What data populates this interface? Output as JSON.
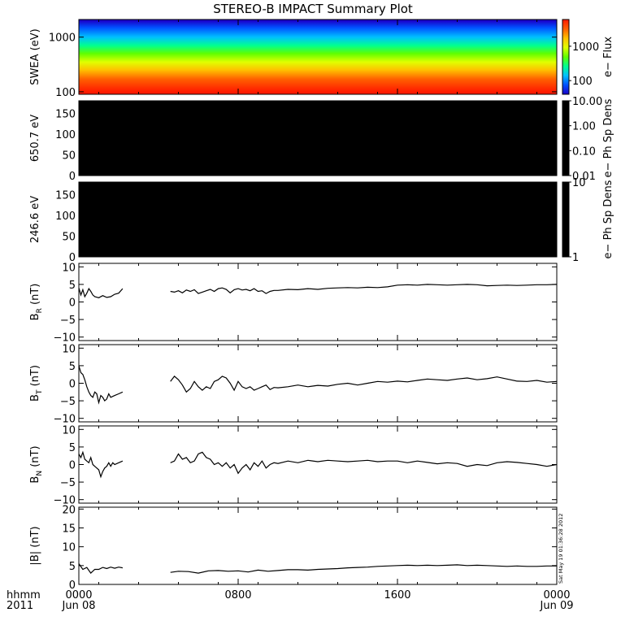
{
  "title": "STEREO-B IMPACT Summary Plot",
  "stamp": "Sat May 19 01:36:28 2012",
  "time_axis": {
    "row1_label": "hhmm",
    "row2_label": "2011",
    "ticks": [
      {
        "hours": 0,
        "label1": "0000",
        "label2": "Jun 08"
      },
      {
        "hours": 8,
        "label1": "0800",
        "label2": ""
      },
      {
        "hours": 16,
        "label1": "1600",
        "label2": ""
      },
      {
        "hours": 24,
        "label1": "0000",
        "label2": "Jun 09"
      }
    ],
    "range_hours": [
      0,
      24
    ]
  },
  "chart_data": [
    {
      "type": "heatmap",
      "panel": "swea",
      "ylabel": "SWEA (eV)",
      "yscale": "log",
      "ylim": [
        90,
        2100
      ],
      "yticks": [
        {
          "value": 100,
          "label": "100"
        },
        {
          "value": 1000,
          "label": "1000"
        }
      ],
      "colorbar": {
        "label": "e− Flux",
        "scale": "log",
        "range": [
          40,
          6000
        ],
        "ticks": [
          {
            "value": 100,
            "label": "100"
          },
          {
            "value": 1000,
            "label": "1000"
          }
        ],
        "colors": [
          "#1a00c8",
          "#0050ff",
          "#00c0ff",
          "#00ff90",
          "#60ff00",
          "#e0ff00",
          "#ffc000",
          "#ff6000",
          "#ff1a00"
        ]
      },
      "bands": [
        {
          "energy_ev": 2000,
          "color": "#1a00c8"
        },
        {
          "energy_ev": 1500,
          "color": "#0050ff"
        },
        {
          "energy_ev": 1000,
          "color": "#00c0ff"
        },
        {
          "energy_ev": 700,
          "color": "#00ff90"
        },
        {
          "energy_ev": 500,
          "color": "#60ff00"
        },
        {
          "energy_ev": 350,
          "color": "#e0ff00"
        },
        {
          "energy_ev": 250,
          "color": "#ffc000"
        },
        {
          "energy_ev": 170,
          "color": "#ff6000"
        },
        {
          "energy_ev": 100,
          "color": "#ff1a00"
        }
      ]
    },
    {
      "type": "heatmap",
      "panel": "pad650",
      "ylabel": "650.7 eV",
      "ylim": [
        0,
        180
      ],
      "yticks": [
        {
          "value": 0,
          "label": "0"
        },
        {
          "value": 50,
          "label": "50"
        },
        {
          "value": 100,
          "label": "100"
        },
        {
          "value": 150,
          "label": "150"
        }
      ],
      "fill": "#000000",
      "colorbar": {
        "label": "e− Ph Sp Dens",
        "scale": "log",
        "range": [
          0.01,
          10
        ],
        "ticks": [
          {
            "value": 0.01,
            "label": "0.01"
          },
          {
            "value": 0.1,
            "label": "0.10"
          },
          {
            "value": 1,
            "label": "1.00"
          },
          {
            "value": 10,
            "label": "10.00"
          }
        ]
      }
    },
    {
      "type": "heatmap",
      "panel": "pad246",
      "ylabel": "246.6 eV",
      "ylim": [
        0,
        180
      ],
      "yticks": [
        {
          "value": 0,
          "label": "0"
        },
        {
          "value": 50,
          "label": "50"
        },
        {
          "value": 100,
          "label": "100"
        },
        {
          "value": 150,
          "label": "150"
        }
      ],
      "fill": "#000000",
      "colorbar": {
        "label": "e− Ph Sp Dens",
        "scale": "log",
        "range": [
          1,
          10
        ],
        "ticks": [
          {
            "value": 1,
            "label": "1"
          },
          {
            "value": 10,
            "label": "10"
          }
        ]
      }
    },
    {
      "type": "line",
      "panel": "br",
      "ylabel_main": "B",
      "ylabel_sub": "R",
      "ylabel_unit": " (nT)",
      "ylim": [
        -11,
        11
      ],
      "yticks": [
        {
          "value": -10,
          "label": "−10"
        },
        {
          "value": -5,
          "label": "−5"
        },
        {
          "value": 0,
          "label": "0"
        },
        {
          "value": 5,
          "label": "5"
        },
        {
          "value": 10,
          "label": "10"
        }
      ],
      "segments": [
        {
          "x": [
            0,
            0.1,
            0.2,
            0.3,
            0.4,
            0.5,
            0.6,
            0.7,
            0.8,
            1.0,
            1.2,
            1.4,
            1.6,
            1.8,
            2.0,
            2.2
          ],
          "y": [
            4.0,
            2.0,
            3.5,
            1.5,
            2.5,
            3.8,
            3.0,
            2.0,
            1.5,
            1.2,
            1.8,
            1.3,
            1.5,
            2.2,
            2.5,
            3.8
          ]
        },
        {
          "x": [
            4.6,
            4.8,
            5.0,
            5.2,
            5.4,
            5.6,
            5.8,
            6.0,
            6.2,
            6.4,
            6.6,
            6.8,
            7.0,
            7.2,
            7.4,
            7.6,
            7.8,
            8.0,
            8.2,
            8.4,
            8.6,
            8.8,
            9.0,
            9.2,
            9.4,
            9.6,
            9.8,
            10.0,
            10.5,
            11.0,
            11.5,
            12.0,
            12.5,
            13.0,
            13.5,
            14.0,
            14.5,
            15.0,
            15.5,
            16.0,
            16.5,
            17.0,
            17.5,
            18.0,
            18.5,
            19.0,
            19.5,
            20.0,
            20.5,
            21.0,
            21.5,
            22.0,
            22.5,
            23.0,
            23.5,
            24.0
          ],
          "y": [
            3.0,
            2.8,
            3.2,
            2.6,
            3.4,
            3.0,
            3.5,
            2.4,
            2.8,
            3.2,
            3.6,
            3.0,
            3.8,
            4.0,
            3.6,
            2.6,
            3.5,
            3.8,
            3.4,
            3.6,
            3.2,
            3.8,
            3.0,
            3.2,
            2.4,
            3.0,
            3.3,
            3.3,
            3.6,
            3.5,
            3.8,
            3.6,
            3.9,
            4.0,
            4.1,
            4.0,
            4.2,
            4.1,
            4.3,
            4.8,
            4.9,
            4.8,
            5.0,
            4.9,
            4.8,
            4.9,
            5.0,
            4.9,
            4.6,
            4.7,
            4.8,
            4.7,
            4.8,
            4.9,
            4.9,
            5.0
          ]
        }
      ]
    },
    {
      "type": "line",
      "panel": "bt",
      "ylabel_main": "B",
      "ylabel_sub": "T",
      "ylabel_unit": " (nT)",
      "ylim": [
        -11,
        11
      ],
      "yticks": [
        {
          "value": -10,
          "label": "−10"
        },
        {
          "value": -5,
          "label": "−5"
        },
        {
          "value": 0,
          "label": "0"
        },
        {
          "value": 5,
          "label": "5"
        },
        {
          "value": 10,
          "label": "10"
        }
      ],
      "segments": [
        {
          "x": [
            0,
            0.1,
            0.2,
            0.3,
            0.4,
            0.5,
            0.6,
            0.7,
            0.8,
            0.9,
            1.0,
            1.1,
            1.2,
            1.3,
            1.4,
            1.5,
            1.6,
            1.8,
            2.0,
            2.2
          ],
          "y": [
            5.0,
            3.0,
            2.5,
            1.0,
            -1.0,
            -2.5,
            -3.5,
            -4.0,
            -2.5,
            -3.0,
            -5.5,
            -3.5,
            -4.0,
            -5.0,
            -4.5,
            -3.0,
            -4.0,
            -3.5,
            -3.0,
            -2.5
          ]
        },
        {
          "x": [
            4.6,
            4.8,
            5.0,
            5.2,
            5.4,
            5.6,
            5.8,
            6.0,
            6.2,
            6.4,
            6.6,
            6.8,
            7.0,
            7.2,
            7.4,
            7.6,
            7.8,
            8.0,
            8.2,
            8.4,
            8.6,
            8.8,
            9.0,
            9.2,
            9.4,
            9.6,
            9.8,
            10.0,
            10.5,
            11.0,
            11.5,
            12.0,
            12.5,
            13.0,
            13.5,
            14.0,
            14.5,
            15.0,
            15.5,
            16.0,
            16.5,
            17.0,
            17.5,
            18.0,
            18.5,
            19.0,
            19.5,
            20.0,
            20.5,
            21.0,
            21.5,
            22.0,
            22.5,
            23.0,
            23.5,
            24.0
          ],
          "y": [
            0.5,
            2.0,
            1.0,
            -0.5,
            -2.5,
            -1.5,
            0.5,
            -1.0,
            -2.0,
            -1.0,
            -1.5,
            0.5,
            1.0,
            2.0,
            1.5,
            0.0,
            -2.0,
            0.5,
            -1.0,
            -1.5,
            -1.0,
            -2.0,
            -1.5,
            -1.0,
            -0.5,
            -1.8,
            -1.2,
            -1.3,
            -1.0,
            -0.5,
            -1.0,
            -0.6,
            -0.8,
            -0.3,
            0.0,
            -0.5,
            0.0,
            0.5,
            0.3,
            0.6,
            0.4,
            0.8,
            1.2,
            1.0,
            0.8,
            1.2,
            1.5,
            1.0,
            1.3,
            1.8,
            1.2,
            0.6,
            0.5,
            0.8,
            0.3,
            0.5
          ]
        }
      ]
    },
    {
      "type": "line",
      "panel": "bn",
      "ylabel_main": "B",
      "ylabel_sub": "N",
      "ylabel_unit": " (nT)",
      "ylim": [
        -11,
        11
      ],
      "yticks": [
        {
          "value": -10,
          "label": "−10"
        },
        {
          "value": -5,
          "label": "−5"
        },
        {
          "value": 0,
          "label": "0"
        },
        {
          "value": 5,
          "label": "5"
        },
        {
          "value": 10,
          "label": "10"
        }
      ],
      "segments": [
        {
          "x": [
            0,
            0.1,
            0.2,
            0.3,
            0.4,
            0.5,
            0.6,
            0.7,
            0.8,
            0.9,
            1.0,
            1.1,
            1.2,
            1.3,
            1.4,
            1.5,
            1.6,
            1.7,
            1.8,
            2.0,
            2.2
          ],
          "y": [
            3.0,
            2.0,
            3.5,
            1.5,
            1.0,
            0.5,
            2.0,
            0.0,
            -0.5,
            -1.0,
            -1.5,
            -3.5,
            -2.0,
            -1.0,
            -0.5,
            0.5,
            -0.5,
            0.5,
            0.0,
            0.5,
            1.0
          ]
        },
        {
          "x": [
            4.6,
            4.8,
            5.0,
            5.2,
            5.4,
            5.6,
            5.8,
            6.0,
            6.2,
            6.4,
            6.6,
            6.8,
            7.0,
            7.2,
            7.4,
            7.6,
            7.8,
            8.0,
            8.2,
            8.4,
            8.6,
            8.8,
            9.0,
            9.2,
            9.4,
            9.6,
            9.8,
            10.0,
            10.5,
            11.0,
            11.5,
            12.0,
            12.5,
            13.0,
            13.5,
            14.0,
            14.5,
            15.0,
            15.5,
            16.0,
            16.5,
            17.0,
            17.5,
            18.0,
            18.5,
            19.0,
            19.5,
            20.0,
            20.5,
            21.0,
            21.5,
            22.0,
            22.5,
            23.0,
            23.5,
            24.0
          ],
          "y": [
            0.5,
            1.0,
            3.0,
            1.5,
            2.0,
            0.5,
            1.0,
            3.0,
            3.5,
            2.0,
            1.5,
            0.0,
            0.5,
            -0.5,
            0.5,
            -1.0,
            0.0,
            -2.5,
            -1.0,
            0.0,
            -1.5,
            0.5,
            -0.5,
            1.0,
            -1.0,
            0.0,
            0.5,
            0.3,
            1.0,
            0.5,
            1.2,
            0.8,
            1.2,
            1.0,
            0.8,
            1.0,
            1.2,
            0.8,
            1.0,
            1.0,
            0.5,
            1.0,
            0.6,
            0.2,
            0.5,
            0.3,
            -0.5,
            0.0,
            -0.3,
            0.5,
            0.8,
            0.6,
            0.3,
            0.0,
            -0.5,
            0.0
          ]
        }
      ]
    },
    {
      "type": "line",
      "panel": "bmag",
      "ylabel_main": "|B| (nT)",
      "ylim": [
        0,
        20.5
      ],
      "yticks": [
        {
          "value": 0,
          "label": "0"
        },
        {
          "value": 5,
          "label": "5"
        },
        {
          "value": 10,
          "label": "10"
        },
        {
          "value": 15,
          "label": "15"
        },
        {
          "value": 20,
          "label": "20"
        }
      ],
      "segments": [
        {
          "x": [
            0,
            0.2,
            0.4,
            0.6,
            0.8,
            1.0,
            1.2,
            1.4,
            1.6,
            1.8,
            2.0,
            2.2
          ],
          "y": [
            5.5,
            4.0,
            4.5,
            3.0,
            4.0,
            4.0,
            4.5,
            4.2,
            4.6,
            4.3,
            4.6,
            4.4
          ]
        },
        {
          "x": [
            4.6,
            5.0,
            5.5,
            6.0,
            6.5,
            7.0,
            7.5,
            8.0,
            8.5,
            9.0,
            9.5,
            10.0,
            10.5,
            11.0,
            11.5,
            12.0,
            12.5,
            13.0,
            13.5,
            14.0,
            14.5,
            15.0,
            15.5,
            16.0,
            16.5,
            17.0,
            17.5,
            18.0,
            18.5,
            19.0,
            19.5,
            20.0,
            20.5,
            21.0,
            21.5,
            22.0,
            22.5,
            23.0,
            23.5,
            24.0
          ],
          "y": [
            3.2,
            3.5,
            3.4,
            3.0,
            3.6,
            3.7,
            3.5,
            3.6,
            3.3,
            3.8,
            3.5,
            3.7,
            3.9,
            3.9,
            3.8,
            4.0,
            4.1,
            4.2,
            4.4,
            4.5,
            4.6,
            4.8,
            4.9,
            5.0,
            5.1,
            5.0,
            5.1,
            5.0,
            5.1,
            5.2,
            5.0,
            5.1,
            5.0,
            4.9,
            4.8,
            4.9,
            4.8,
            4.8,
            4.9,
            4.9
          ]
        }
      ]
    }
  ]
}
